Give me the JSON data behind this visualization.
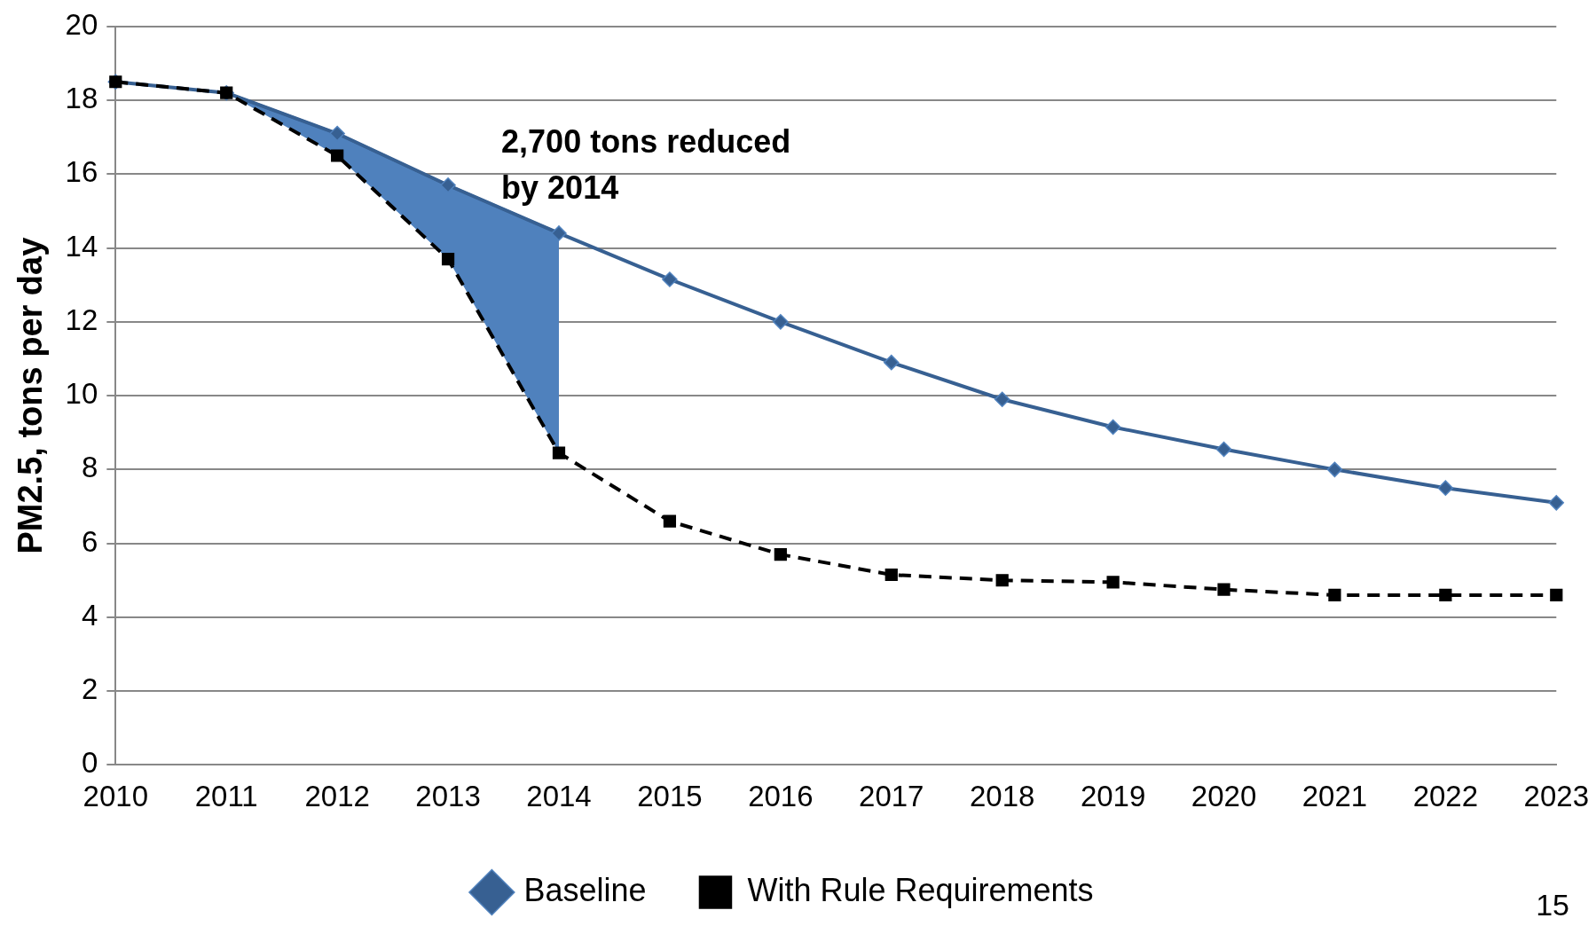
{
  "chart_data": {
    "type": "line",
    "ylabel": "PM2.5, tons per day",
    "categories": [
      "2010",
      "2011",
      "2012",
      "2013",
      "2014",
      "2015",
      "2016",
      "2017",
      "2018",
      "2019",
      "2020",
      "2021",
      "2022",
      "2023"
    ],
    "series": [
      {
        "type": "area",
        "color": "#4f81bd",
        "values": [
          null,
          18.2,
          17.1,
          15.7,
          14.4,
          null,
          null,
          null,
          null,
          null,
          null,
          null,
          null,
          null
        ]
      },
      {
        "name": "Baseline",
        "color": "#376092",
        "marker": "diamond",
        "line_style": "solid",
        "values": [
          18.5,
          18.2,
          17.1,
          15.7,
          14.4,
          13.15,
          12.0,
          10.9,
          9.9,
          9.15,
          8.55,
          8.0,
          7.5,
          7.1
        ]
      },
      {
        "name": "With Rule Requirements",
        "color": "#000000",
        "marker": "square",
        "line_style": "dashed",
        "values": [
          18.5,
          18.2,
          16.5,
          13.7,
          8.45,
          6.6,
          5.7,
          5.15,
          5.0,
          4.95,
          4.75,
          4.6,
          4.6,
          4.6
        ]
      }
    ],
    "ylim": [
      0,
      20
    ],
    "yticks": [
      0,
      2,
      4,
      6,
      8,
      10,
      12,
      14,
      16,
      18,
      20
    ],
    "grid": "y",
    "legend": "bottom",
    "annotations": [
      "2,700 tons reduced\nby 2014",
      "15"
    ]
  }
}
